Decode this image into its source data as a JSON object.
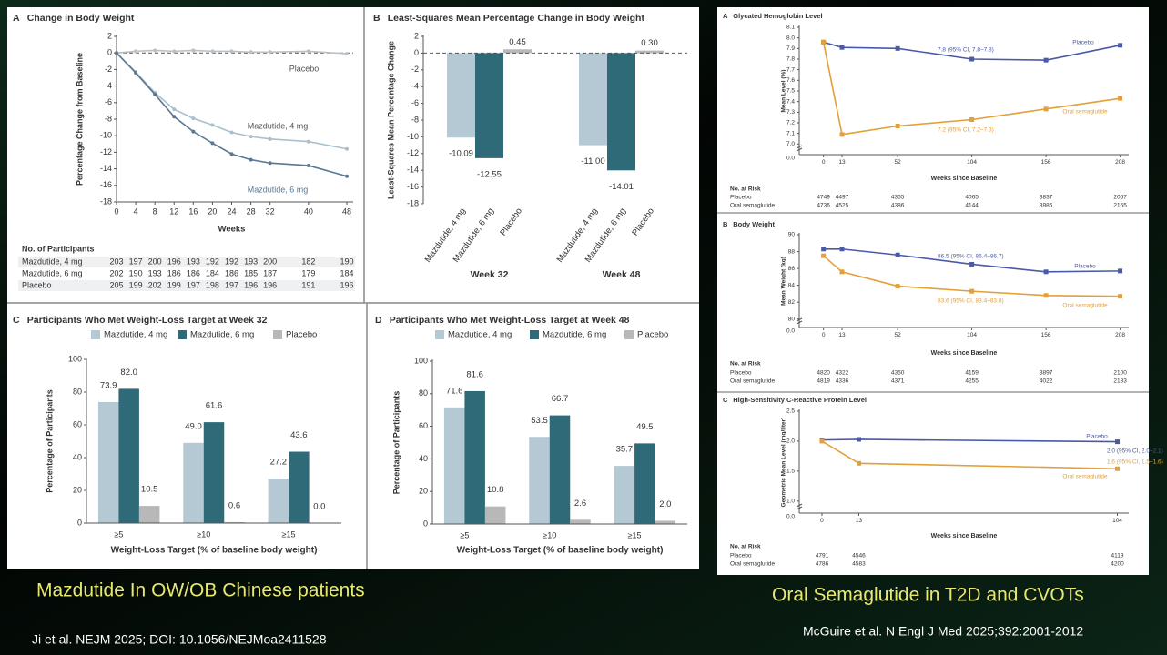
{
  "slide": {
    "left_caption": "Mazdutide In OW/OB Chinese patients",
    "left_reference": "Ji et al. NEJM 2025; DOI: 10.1056/NEJMoa2411528",
    "right_caption": "Oral Semaglutide in T2D and CVOTs",
    "right_reference": "McGuire et al. N Engl J Med 2025;392:2001-2012"
  },
  "chart_data": [
    {
      "type": "line",
      "panel": "A",
      "title": "Change in Body Weight",
      "xlabel": "Weeks",
      "ylabel": "Percentage Change from Baseline",
      "x": [
        0,
        4,
        8,
        12,
        16,
        20,
        24,
        28,
        32,
        40,
        48
      ],
      "xlim": [
        0,
        48
      ],
      "xticks": [
        0,
        4,
        8,
        12,
        16,
        20,
        24,
        28,
        32,
        40,
        48
      ],
      "ylim": [
        -18,
        2
      ],
      "yticks": [
        -18,
        -16,
        -14,
        -12,
        -10,
        -8,
        -6,
        -4,
        -2,
        0,
        2
      ],
      "zero_line": "dashed",
      "marker": "circle",
      "series": [
        {
          "name": "Placebo",
          "color": "#b9c0c6",
          "values": [
            0,
            0.2,
            0.3,
            0.2,
            0.3,
            0.2,
            0.2,
            0.1,
            0.1,
            0.2,
            -0.1
          ]
        },
        {
          "name": "Mazdutide, 4 mg",
          "color": "#a9bfcc",
          "values": [
            0,
            -2.3,
            -4.8,
            -6.8,
            -7.9,
            -8.7,
            -9.6,
            -10.1,
            -10.4,
            -10.7,
            -11.6
          ]
        },
        {
          "name": "Mazdutide, 6 mg",
          "color": "#5a7893",
          "values": [
            0,
            -2.4,
            -5,
            -7.7,
            -9.5,
            -10.9,
            -12.2,
            -12.9,
            -13.3,
            -13.6,
            -14.9
          ]
        }
      ],
      "table": {
        "title": "No. of Participants",
        "rows": [
          {
            "name": "Mazdutide, 4 mg",
            "values": [
              203,
              197,
              200,
              196,
              193,
              192,
              192,
              193,
              200,
              182,
              190
            ]
          },
          {
            "name": "Mazdutide, 6 mg",
            "values": [
              202,
              190,
              193,
              186,
              186,
              184,
              186,
              185,
              187,
              179,
              184
            ]
          },
          {
            "name": "Placebo",
            "values": [
              205,
              199,
              202,
              199,
              197,
              198,
              197,
              196,
              196,
              191,
              196
            ]
          }
        ]
      }
    },
    {
      "type": "bar",
      "panel": "B",
      "title": "Least-Squares Mean Percentage Change in Body Weight",
      "ylabel": "Least-Squares Mean Percentage Change",
      "categories": [
        "Week 32",
        "Week 48"
      ],
      "ylim": [
        -18,
        2
      ],
      "yticks": [
        -18,
        -16,
        -14,
        -12,
        -10,
        -8,
        -6,
        -4,
        -2,
        0,
        2
      ],
      "zero_line": "dashed",
      "series_labels": "rotated",
      "series": [
        {
          "name": "Mazdutide, 4 mg",
          "color": "#b5c9d4",
          "values": [
            -10.09,
            -11.0
          ],
          "value_labels": [
            "-10.09",
            "-11.00"
          ]
        },
        {
          "name": "Mazdutide, 6 mg",
          "color": "#2e6a77",
          "values": [
            -12.55,
            -14.01
          ],
          "value_labels": [
            "-12.55",
            "-14.01"
          ]
        },
        {
          "name": "Placebo",
          "color": "#b8b8b8",
          "values": [
            0.45,
            0.3
          ],
          "value_labels": [
            "0.45",
            "0.30"
          ]
        }
      ]
    },
    {
      "type": "bar",
      "panel": "C",
      "title": "Participants Who Met Weight-Loss Target at Week 32",
      "xlabel": "Weight-Loss Target (% of baseline body weight)",
      "ylabel": "Percentage of Participants",
      "categories": [
        "≥5",
        "≥10",
        "≥15"
      ],
      "ylim": [
        0,
        100
      ],
      "yticks": [
        0,
        20,
        40,
        60,
        80,
        100
      ],
      "legend": "top",
      "series": [
        {
          "name": "Mazdutide, 4 mg",
          "color": "#b5c9d4",
          "values": [
            73.9,
            49.0,
            27.2
          ],
          "value_labels": [
            "73.9",
            "49.0",
            "27.2"
          ]
        },
        {
          "name": "Mazdutide, 6 mg",
          "color": "#2e6a77",
          "values": [
            82.0,
            61.6,
            43.6
          ],
          "value_labels": [
            "82.0",
            "61.6",
            "43.6"
          ]
        },
        {
          "name": "Placebo",
          "color": "#b8b8b8",
          "values": [
            10.5,
            0.6,
            0.0
          ],
          "value_labels": [
            "10.5",
            "0.6",
            "0.0"
          ]
        }
      ]
    },
    {
      "type": "bar",
      "panel": "D",
      "title": "Participants Who Met Weight-Loss Target at Week 48",
      "xlabel": "Weight-Loss Target (% of baseline body weight)",
      "ylabel": "Percentage of Participants",
      "categories": [
        "≥5",
        "≥10",
        "≥15"
      ],
      "ylim": [
        0,
        100
      ],
      "yticks": [
        0,
        20,
        40,
        60,
        80,
        100
      ],
      "legend": "top",
      "series": [
        {
          "name": "Mazdutide, 4 mg",
          "color": "#b5c9d4",
          "values": [
            71.6,
            53.5,
            35.7
          ],
          "value_labels": [
            "71.6",
            "53.5",
            "35.7"
          ]
        },
        {
          "name": "Mazdutide, 6 mg",
          "color": "#2e6a77",
          "values": [
            81.6,
            66.7,
            49.5
          ],
          "value_labels": [
            "81.6",
            "66.7",
            "49.5"
          ]
        },
        {
          "name": "Placebo",
          "color": "#b8b8b8",
          "values": [
            10.8,
            2.6,
            2.0
          ],
          "value_labels": [
            "10.8",
            "2.6",
            "2.0"
          ]
        }
      ]
    },
    {
      "type": "line",
      "panel": "A",
      "title": "Glycated Hemoglobin Level",
      "xlabel": "Weeks since Baseline",
      "ylabel": "Mean Level (%)",
      "x": [
        0,
        13,
        52,
        104,
        156,
        208
      ],
      "xlim": [
        -17,
        214
      ],
      "xticks": [
        0,
        13,
        52,
        104,
        156,
        208
      ],
      "ylim": [
        6.9,
        8.1
      ],
      "yticks": [
        {
          "value": 7,
          "label": "7.0"
        },
        7.1,
        7.2,
        7.3,
        7.4,
        7.5,
        7.6,
        7.7,
        7.8,
        7.9,
        {
          "value": 8,
          "label": "8.0"
        },
        8.1
      ],
      "axis_break_label": "0.0",
      "marker": "square",
      "series": [
        {
          "name": "Placebo",
          "color": "#4b5aa6",
          "values": [
            7.96,
            7.91,
            7.9,
            7.8,
            7.79,
            7.93
          ]
        },
        {
          "name": "Oral semaglutide",
          "color": "#e3a03a",
          "values": [
            7.96,
            7.09,
            7.17,
            7.23,
            7.33,
            7.43
          ]
        }
      ],
      "annotations": [
        "7.8 (95% CI, 7.8–7.8)",
        "7.2 (95% CI, 7.2–7.3)"
      ],
      "table": {
        "title": "No. at Risk",
        "rows": [
          {
            "name": "Placebo",
            "values": [
              4749,
              4497,
              4355,
              4065,
              3837,
              2057
            ]
          },
          {
            "name": "Oral semaglutide",
            "values": [
              4736,
              4525,
              4386,
              4144,
              3985,
              2155
            ]
          }
        ]
      }
    },
    {
      "type": "line",
      "panel": "B",
      "title": "Body Weight",
      "xlabel": "Weeks since Baseline",
      "ylabel": "Mean Weight (kg)",
      "x": [
        0,
        13,
        52,
        104,
        156,
        208
      ],
      "xlim": [
        -17,
        214
      ],
      "xticks": [
        0,
        13,
        52,
        104,
        156,
        208
      ],
      "ylim": [
        79,
        90
      ],
      "yticks": [
        80,
        82,
        84,
        86,
        88,
        90
      ],
      "axis_break_label": "0.0",
      "marker": "square",
      "series": [
        {
          "name": "Placebo",
          "color": "#4b5aa6",
          "values": [
            88.3,
            88.3,
            87.6,
            86.5,
            85.6,
            85.7
          ]
        },
        {
          "name": "Oral semaglutide",
          "color": "#e3a03a",
          "values": [
            87.5,
            85.6,
            83.9,
            83.3,
            82.8,
            82.7
          ]
        }
      ],
      "annotations": [
        "86.5 (95% CI, 86.4–86.7)",
        "83.6 (95% CI, 83.4–83.8)"
      ],
      "table": {
        "title": "No. at Risk",
        "rows": [
          {
            "name": "Placebo",
            "values": [
              4820,
              4322,
              4350,
              4159,
              3897,
              2100
            ]
          },
          {
            "name": "Oral semaglutide",
            "values": [
              4819,
              4336,
              4371,
              4255,
              4022,
              2183
            ]
          }
        ]
      }
    },
    {
      "type": "line",
      "panel": "C",
      "title": "High-Sensitivity C-Reactive Protein Level",
      "xlabel": "Weeks since Baseline",
      "ylabel": "Geometric Mean Level (mg/liter)",
      "x": [
        0,
        13,
        104
      ],
      "xlim": [
        -8,
        108
      ],
      "xticks": [
        0,
        13,
        104
      ],
      "ylim": [
        0.8,
        2.5
      ],
      "yticks": [
        {
          "value": 1,
          "label": "1.0"
        },
        1.5,
        {
          "value": 2,
          "label": "2.0"
        },
        2.5
      ],
      "axis_break_label": "0.0",
      "marker": "square",
      "series": [
        {
          "name": "Placebo",
          "color": "#4b5aa6",
          "values": [
            2.02,
            2.03,
            1.99
          ]
        },
        {
          "name": "Oral semaglutide",
          "color": "#e3a03a",
          "values": [
            2.0,
            1.63,
            1.54
          ]
        }
      ],
      "annotations": [
        "2.0 (95% CI, 2.0–2.1)",
        "1.6 (95% CI, 1.5–1.6)"
      ],
      "table": {
        "title": "No. at Risk",
        "rows": [
          {
            "name": "Placebo",
            "values": [
              4791,
              4546,
              4119
            ]
          },
          {
            "name": "Oral semaglutide",
            "values": [
              4786,
              4583,
              4200
            ]
          }
        ]
      }
    }
  ]
}
